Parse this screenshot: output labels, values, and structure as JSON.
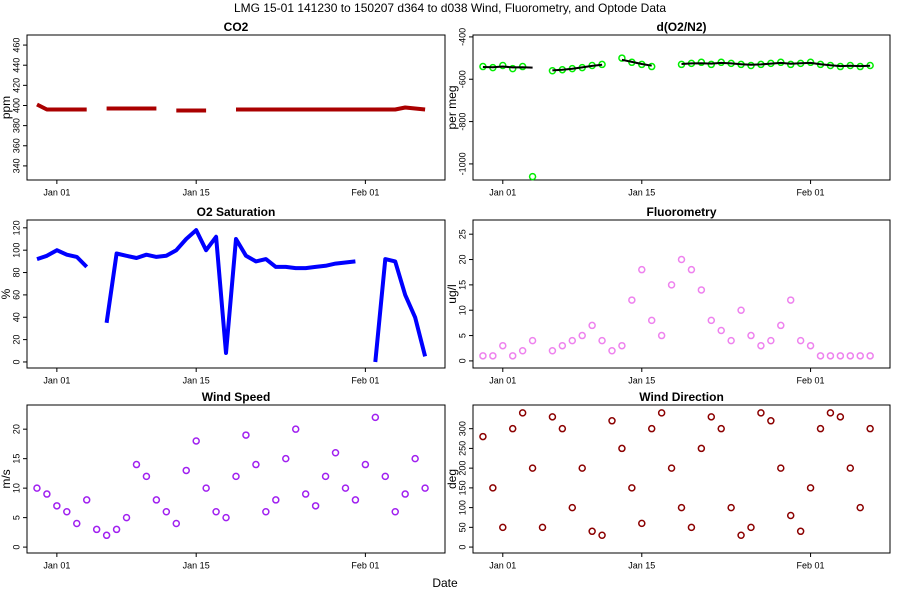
{
  "title": "LMG   15-01    141230 to 150207    d364 to d038   Wind, Fluorometry, and Optode Data",
  "xlabel": "Date",
  "chart_data": [
    {
      "type": "line",
      "title": "CO2",
      "ylabel": "ppm",
      "x": [
        "Dec 30",
        "Dec 31",
        "Jan 01",
        "Jan 02",
        "Jan 03",
        "Jan 04",
        "Jan 05",
        "Jan 06",
        "Jan 07",
        "Jan 08",
        "Jan 09",
        "Jan 10",
        "Jan 11",
        "Jan 12",
        "Jan 13",
        "Jan 14",
        "Jan 15",
        "Jan 16",
        "Jan 17",
        "Jan 18",
        "Jan 19",
        "Jan 20",
        "Jan 21",
        "Jan 22",
        "Jan 23",
        "Jan 24",
        "Jan 25",
        "Jan 26",
        "Jan 27",
        "Jan 28",
        "Jan 29",
        "Jan 30",
        "Jan 31",
        "Feb 01",
        "Feb 02",
        "Feb 03",
        "Feb 04",
        "Feb 05",
        "Feb 06",
        "Feb 07"
      ],
      "values": [
        401,
        396,
        396,
        396,
        396,
        396,
        null,
        397,
        397,
        397,
        397,
        397,
        397,
        null,
        395,
        395,
        395,
        395,
        null,
        null,
        396,
        396,
        396,
        396,
        396,
        396,
        396,
        396,
        396,
        396,
        396,
        396,
        396,
        396,
        396,
        396,
        396,
        398,
        397,
        396
      ],
      "color": "#aa0000",
      "xlim": [
        "Dec 29",
        "Feb 09"
      ],
      "xticks": [
        "Jan 01",
        "Jan 15",
        "Feb 01"
      ],
      "ylim": [
        326,
        470
      ],
      "yticks": [
        340,
        360,
        380,
        400,
        420,
        440,
        460
      ]
    },
    {
      "type": "scatter",
      "title": "d(O2/N2)",
      "ylabel": "per meg",
      "x": [
        "Dec 30",
        "Dec 31",
        "Jan 01",
        "Jan 02",
        "Jan 03",
        "Jan 04",
        "Jan 05",
        "Jan 06",
        "Jan 07",
        "Jan 08",
        "Jan 09",
        "Jan 10",
        "Jan 11",
        "Jan 12",
        "Jan 13",
        "Jan 14",
        "Jan 15",
        "Jan 16",
        "Jan 17",
        "Jan 18",
        "Jan 19",
        "Jan 20",
        "Jan 21",
        "Jan 22",
        "Jan 23",
        "Jan 24",
        "Jan 25",
        "Jan 26",
        "Jan 27",
        "Jan 28",
        "Jan 29",
        "Jan 30",
        "Jan 31",
        "Feb 01",
        "Feb 02",
        "Feb 03",
        "Feb 04",
        "Feb 05",
        "Feb 06",
        "Feb 07"
      ],
      "series": [
        {
          "color": "#00ee00",
          "values": [
            -540,
            -545,
            -535,
            -550,
            -540,
            -1060,
            null,
            -560,
            -555,
            -550,
            -545,
            -535,
            -530,
            null,
            -500,
            -520,
            -530,
            -540,
            null,
            null,
            -530,
            -525,
            -520,
            -530,
            -520,
            -525,
            -530,
            -535,
            -530,
            -525,
            -520,
            -530,
            -525,
            -520,
            -530,
            -535,
            -540,
            -535,
            -540,
            -535
          ]
        },
        {
          "color": "#000000",
          "type": "line",
          "values": [
            -542,
            -543,
            -540,
            -544,
            -543,
            -545,
            null,
            -558,
            -555,
            -550,
            -544,
            -537,
            -532,
            null,
            -508,
            -518,
            -528,
            -536,
            null,
            null,
            -528,
            -525,
            -524,
            -526,
            -523,
            -525,
            -529,
            -532,
            -530,
            -526,
            -523,
            -527,
            -524,
            -523,
            -529,
            -534,
            -538,
            -536,
            -538,
            -536
          ]
        }
      ],
      "xlim": [
        "Dec 29",
        "Feb 09"
      ],
      "xticks": [
        "Jan 01",
        "Jan 15",
        "Feb 01"
      ],
      "ylim": [
        -1076,
        -391
      ],
      "yticks": [
        -1000,
        -800,
        -600,
        -400
      ]
    },
    {
      "type": "line",
      "title": "O2 Saturation",
      "ylabel": "%",
      "x": [
        "Dec 30",
        "Dec 31",
        "Jan 01",
        "Jan 02",
        "Jan 03",
        "Jan 04",
        "Jan 05",
        "Jan 06",
        "Jan 07",
        "Jan 08",
        "Jan 09",
        "Jan 10",
        "Jan 11",
        "Jan 12",
        "Jan 13",
        "Jan 14",
        "Jan 15",
        "Jan 16",
        "Jan 17",
        "Jan 18",
        "Jan 19",
        "Jan 20",
        "Jan 21",
        "Jan 22",
        "Jan 23",
        "Jan 24",
        "Jan 25",
        "Jan 26",
        "Jan 27",
        "Jan 28",
        "Jan 29",
        "Jan 30",
        "Jan 31",
        "Feb 01",
        "Feb 02",
        "Feb 03",
        "Feb 04",
        "Feb 05",
        "Feb 06",
        "Feb 07"
      ],
      "values": [
        92,
        95,
        100,
        96,
        94,
        85,
        null,
        35,
        97,
        95,
        93,
        96,
        94,
        95,
        100,
        110,
        118,
        100,
        112,
        8,
        110,
        95,
        90,
        92,
        85,
        85,
        84,
        84,
        85,
        86,
        88,
        89,
        90,
        null,
        0,
        92,
        90,
        60,
        40,
        5
      ],
      "color": "#0000ff",
      "xlim": [
        "Dec 29",
        "Feb 09"
      ],
      "xticks": [
        "Jan 01",
        "Jan 15",
        "Feb 01"
      ],
      "ylim": [
        -5.4,
        127
      ],
      "yticks": [
        0,
        20,
        40,
        60,
        80,
        100,
        120
      ]
    },
    {
      "type": "scatter",
      "title": "Fluorometry",
      "ylabel": "ug/l",
      "x": [
        "Dec 30",
        "Dec 31",
        "Jan 01",
        "Jan 02",
        "Jan 03",
        "Jan 04",
        "Jan 05",
        "Jan 06",
        "Jan 07",
        "Jan 08",
        "Jan 09",
        "Jan 10",
        "Jan 11",
        "Jan 12",
        "Jan 13",
        "Jan 14",
        "Jan 15",
        "Jan 16",
        "Jan 17",
        "Jan 18",
        "Jan 19",
        "Jan 20",
        "Jan 21",
        "Jan 22",
        "Jan 23",
        "Jan 24",
        "Jan 25",
        "Jan 26",
        "Jan 27",
        "Jan 28",
        "Jan 29",
        "Jan 30",
        "Jan 31",
        "Feb 01",
        "Feb 02",
        "Feb 03",
        "Feb 04",
        "Feb 05",
        "Feb 06",
        "Feb 07"
      ],
      "values": [
        1,
        1,
        3,
        1,
        2,
        4,
        null,
        2,
        3,
        4,
        5,
        7,
        4,
        2,
        3,
        12,
        18,
        8,
        5,
        15,
        20,
        18,
        14,
        8,
        6,
        4,
        10,
        5,
        3,
        4,
        7,
        12,
        4,
        3,
        1,
        1,
        1,
        1,
        1,
        1
      ],
      "color": "#ee82ee",
      "xlim": [
        "Dec 29",
        "Feb 09"
      ],
      "xticks": [
        "Jan 01",
        "Jan 15",
        "Feb 01"
      ],
      "ylim": [
        -1.4,
        27.8
      ],
      "yticks": [
        0,
        5,
        10,
        15,
        20,
        25
      ]
    },
    {
      "type": "scatter",
      "title": "Wind Speed",
      "ylabel": "m/s",
      "x": [
        "Dec 30",
        "Dec 31",
        "Jan 01",
        "Jan 02",
        "Jan 03",
        "Jan 04",
        "Jan 05",
        "Jan 06",
        "Jan 07",
        "Jan 08",
        "Jan 09",
        "Jan 10",
        "Jan 11",
        "Jan 12",
        "Jan 13",
        "Jan 14",
        "Jan 15",
        "Jan 16",
        "Jan 17",
        "Jan 18",
        "Jan 19",
        "Jan 20",
        "Jan 21",
        "Jan 22",
        "Jan 23",
        "Jan 24",
        "Jan 25",
        "Jan 26",
        "Jan 27",
        "Jan 28",
        "Jan 29",
        "Jan 30",
        "Jan 31",
        "Feb 01",
        "Feb 02",
        "Feb 03",
        "Feb 04",
        "Feb 05",
        "Feb 06",
        "Feb 07"
      ],
      "values": [
        10,
        9,
        7,
        6,
        4,
        8,
        3,
        2,
        3,
        5,
        14,
        12,
        8,
        6,
        4,
        13,
        18,
        10,
        6,
        5,
        12,
        19,
        14,
        6,
        8,
        15,
        20,
        9,
        7,
        12,
        16,
        10,
        8,
        14,
        22,
        12,
        6,
        9,
        15,
        10
      ],
      "color": "#a020f0",
      "xlim": [
        "Dec 29",
        "Feb 09"
      ],
      "xticks": [
        "Jan 01",
        "Jan 15",
        "Feb 01"
      ],
      "ylim": [
        -1,
        24.1
      ],
      "yticks": [
        0,
        5,
        10,
        15,
        20
      ]
    },
    {
      "type": "scatter",
      "title": "Wind Direction",
      "ylabel": "deg",
      "x": [
        "Dec 30",
        "Dec 31",
        "Jan 01",
        "Jan 02",
        "Jan 03",
        "Jan 04",
        "Jan 05",
        "Jan 06",
        "Jan 07",
        "Jan 08",
        "Jan 09",
        "Jan 10",
        "Jan 11",
        "Jan 12",
        "Jan 13",
        "Jan 14",
        "Jan 15",
        "Jan 16",
        "Jan 17",
        "Jan 18",
        "Jan 19",
        "Jan 20",
        "Jan 21",
        "Jan 22",
        "Jan 23",
        "Jan 24",
        "Jan 25",
        "Jan 26",
        "Jan 27",
        "Jan 28",
        "Jan 29",
        "Jan 30",
        "Jan 31",
        "Feb 01",
        "Feb 02",
        "Feb 03",
        "Feb 04",
        "Feb 05",
        "Feb 06",
        "Feb 07"
      ],
      "values": [
        280,
        150,
        50,
        300,
        340,
        200,
        50,
        330,
        300,
        100,
        200,
        40,
        30,
        320,
        250,
        150,
        60,
        300,
        340,
        200,
        100,
        50,
        250,
        330,
        300,
        100,
        30,
        50,
        340,
        320,
        200,
        80,
        40,
        150,
        300,
        340,
        330,
        200,
        100,
        300
      ],
      "color": "#8b0000",
      "xlim": [
        "Dec 29",
        "Feb 09"
      ],
      "xticks": [
        "Jan 01",
        "Jan 15",
        "Feb 01"
      ],
      "ylim": [
        -15,
        360
      ],
      "yticks": [
        0,
        50,
        100,
        150,
        200,
        250,
        300
      ]
    }
  ]
}
